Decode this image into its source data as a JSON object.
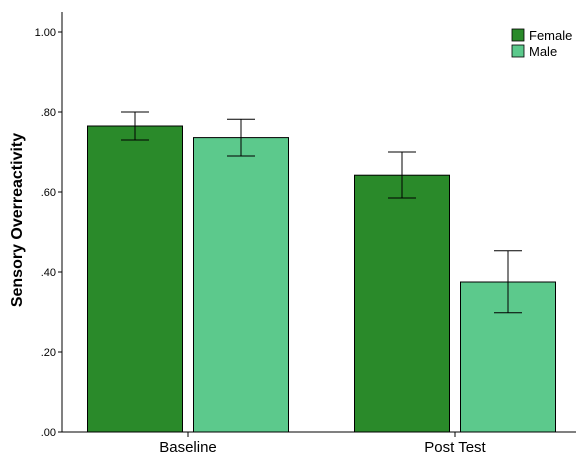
{
  "chart_data": {
    "type": "bar",
    "categories": [
      "Baseline",
      "Post Test"
    ],
    "series": [
      {
        "name": "Female",
        "color": "#2a8a2a",
        "values": [
          0.765,
          0.642
        ],
        "err_low": [
          0.73,
          0.585
        ],
        "err_high": [
          0.8,
          0.7
        ]
      },
      {
        "name": "Male",
        "color": "#5cc98c",
        "values": [
          0.736,
          0.375
        ],
        "err_low": [
          0.69,
          0.298
        ],
        "err_high": [
          0.782,
          0.453
        ]
      }
    ],
    "ylabel": "Sensory Overreactivity",
    "ylim": [
      0,
      1.05
    ],
    "yticks": [
      0.0,
      0.2,
      0.4,
      0.6,
      0.8,
      1.0
    ],
    "ytick_labels": [
      ".00",
      ".20",
      ".40",
      ".60",
      ".80",
      "1.00"
    ],
    "grid": false,
    "legend_position": "top-right",
    "error_bars": true
  }
}
